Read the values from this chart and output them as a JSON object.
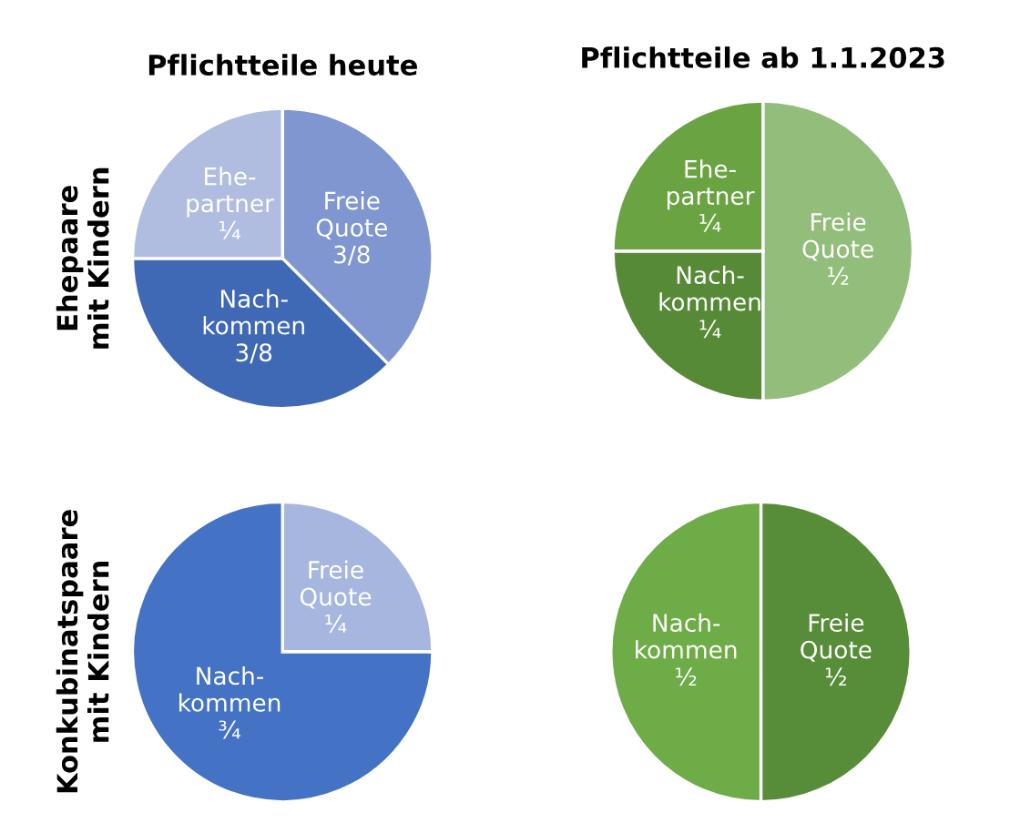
{
  "chart_data": [
    {
      "type": "pie",
      "title": "Pflichtteile heute",
      "ylabel": "Ehepaare\nmit Kindern",
      "categories": [
        "Freie\nQuote",
        "Nach-\nkommen",
        "Ehe-\npartner"
      ],
      "values": [
        0.375,
        0.375,
        0.25
      ],
      "value_labels": [
        "3/8",
        "3/8",
        "¼"
      ],
      "colors": [
        "#7f96d0",
        "#3f69b4",
        "#b0bde0"
      ]
    },
    {
      "type": "pie",
      "title": "Pflichtteile ab 1.1.2023",
      "categories": [
        "Freie\nQuote",
        "Nach-\nkommen",
        "Ehe-\npartner"
      ],
      "values": [
        0.5,
        0.25,
        0.25
      ],
      "value_labels": [
        "½",
        "¼",
        "¼"
      ],
      "colors": [
        "#93bd7a",
        "#578a37",
        "#6aa442"
      ]
    },
    {
      "type": "pie",
      "ylabel": "Konkubinatspaare\nmit Kindern",
      "categories": [
        "Freie\nQuote",
        "Nach-\nkommen"
      ],
      "values": [
        0.25,
        0.75
      ],
      "value_labels": [
        "¼",
        "¾"
      ],
      "colors": [
        "#a6b6de",
        "#4472c4"
      ]
    },
    {
      "type": "pie",
      "categories": [
        "Freie\nQuote",
        "Nach-\nkommen"
      ],
      "values": [
        0.5,
        0.5
      ],
      "value_labels": [
        "½",
        "½"
      ],
      "colors": [
        "#578d38",
        "#6dac46"
      ]
    }
  ]
}
